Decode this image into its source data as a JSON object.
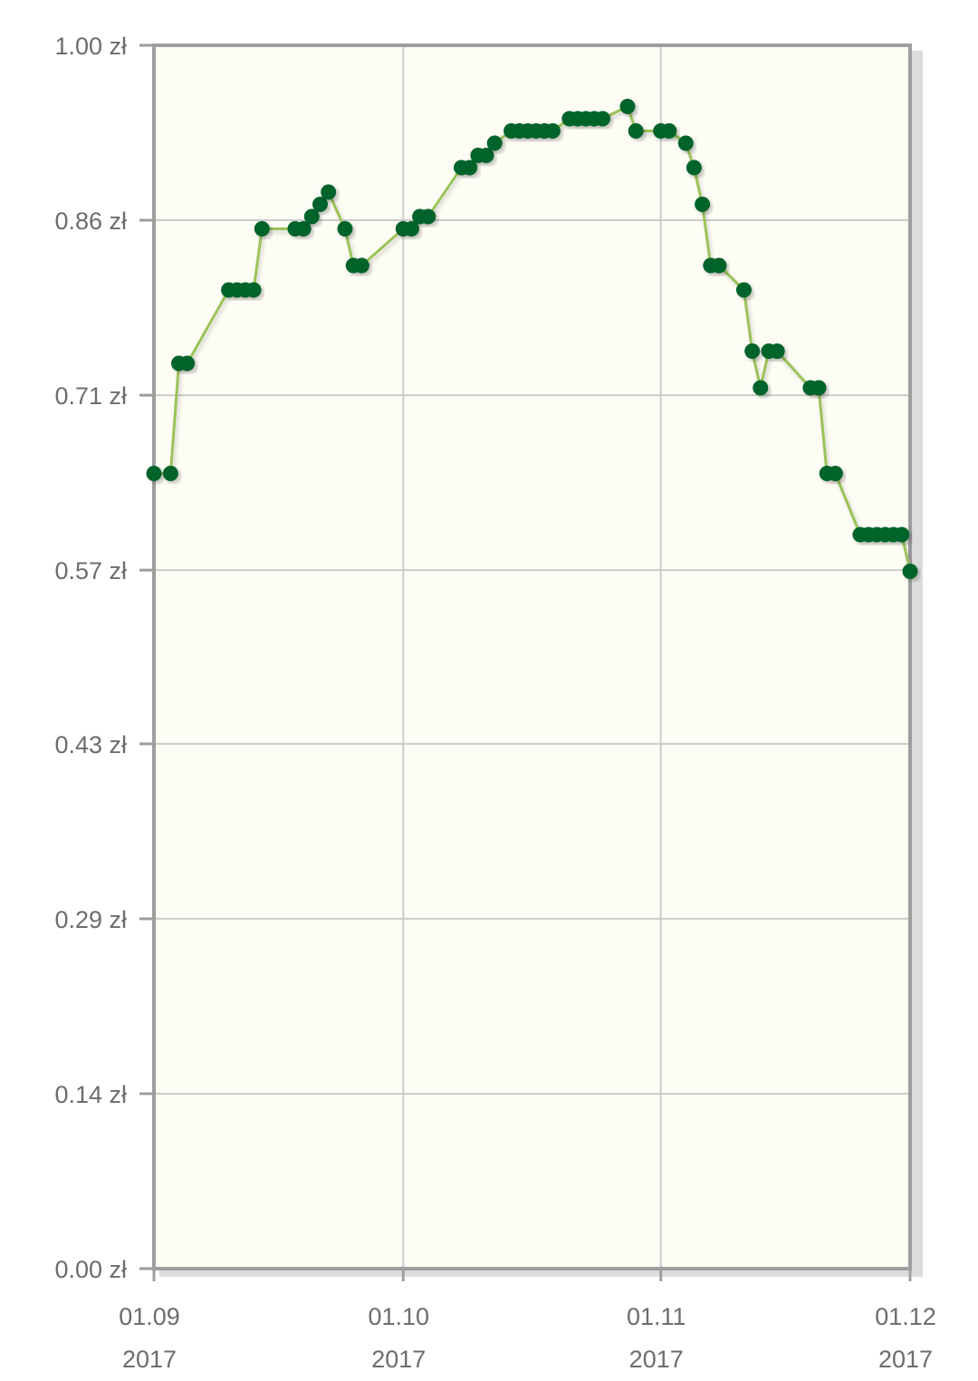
{
  "chart_data": {
    "type": "line",
    "title": "",
    "xlabel": "",
    "ylabel": "",
    "currency_suffix": " zł",
    "ylim": [
      0,
      1.0
    ],
    "xlim": [
      "2017-09-01",
      "2017-12-01"
    ],
    "y_ticks": [
      "0.00 zł",
      "0.14 zł",
      "0.29 zł",
      "0.43 zł",
      "0.57 zł",
      "0.71 zł",
      "0.86 zł",
      "1.00 zł"
    ],
    "y_tick_values": [
      0,
      0.143,
      0.286,
      0.429,
      0.571,
      0.714,
      0.857,
      1.0
    ],
    "x_ticks": [
      {
        "date": "2017-09-01",
        "day": "01.09",
        "year": "2017"
      },
      {
        "date": "2017-10-01",
        "day": "01.10",
        "year": "2017"
      },
      {
        "date": "2017-11-01",
        "day": "01.11",
        "year": "2017"
      },
      {
        "date": "2017-12-01",
        "day": "01.12",
        "year": "2017"
      }
    ],
    "grid": true,
    "colors": {
      "plot_background": "#fdfdf5",
      "line": "#9bc35a",
      "marker": "#00632a",
      "axis": "#9e9e9e",
      "grid": "#cccccc"
    },
    "series": [
      {
        "x": [
          "2017-09-01",
          "2017-09-03",
          "2017-09-04",
          "2017-09-05",
          "2017-09-10",
          "2017-09-11",
          "2017-09-12",
          "2017-09-13",
          "2017-09-14",
          "2017-09-18",
          "2017-09-19",
          "2017-09-20",
          "2017-09-21",
          "2017-09-22",
          "2017-09-24",
          "2017-09-25",
          "2017-09-26",
          "2017-10-01",
          "2017-10-02",
          "2017-10-03",
          "2017-10-04",
          "2017-10-08",
          "2017-10-09",
          "2017-10-10",
          "2017-10-11",
          "2017-10-12",
          "2017-10-14",
          "2017-10-15",
          "2017-10-16",
          "2017-10-17",
          "2017-10-18",
          "2017-10-19",
          "2017-10-21",
          "2017-10-22",
          "2017-10-23",
          "2017-10-24",
          "2017-10-25",
          "2017-10-28",
          "2017-10-29",
          "2017-11-01",
          "2017-11-02",
          "2017-11-04",
          "2017-11-05",
          "2017-11-06",
          "2017-11-07",
          "2017-11-08",
          "2017-11-11",
          "2017-11-12",
          "2017-11-13",
          "2017-11-14",
          "2017-11-15",
          "2017-11-19",
          "2017-11-20",
          "2017-11-21",
          "2017-11-22",
          "2017-11-25",
          "2017-11-26",
          "2017-11-27",
          "2017-11-28",
          "2017-11-29",
          "2017-11-30",
          "2017-12-01"
        ],
        "values": [
          0.65,
          0.65,
          0.74,
          0.74,
          0.8,
          0.8,
          0.8,
          0.8,
          0.85,
          0.85,
          0.85,
          0.86,
          0.87,
          0.88,
          0.85,
          0.82,
          0.82,
          0.85,
          0.85,
          0.86,
          0.86,
          0.9,
          0.9,
          0.91,
          0.91,
          0.92,
          0.93,
          0.93,
          0.93,
          0.93,
          0.93,
          0.93,
          0.94,
          0.94,
          0.94,
          0.94,
          0.94,
          0.95,
          0.93,
          0.93,
          0.93,
          0.92,
          0.9,
          0.87,
          0.82,
          0.82,
          0.8,
          0.75,
          0.72,
          0.75,
          0.75,
          0.72,
          0.72,
          0.65,
          0.65,
          0.6,
          0.6,
          0.6,
          0.6,
          0.6,
          0.6,
          0.57
        ]
      }
    ]
  }
}
